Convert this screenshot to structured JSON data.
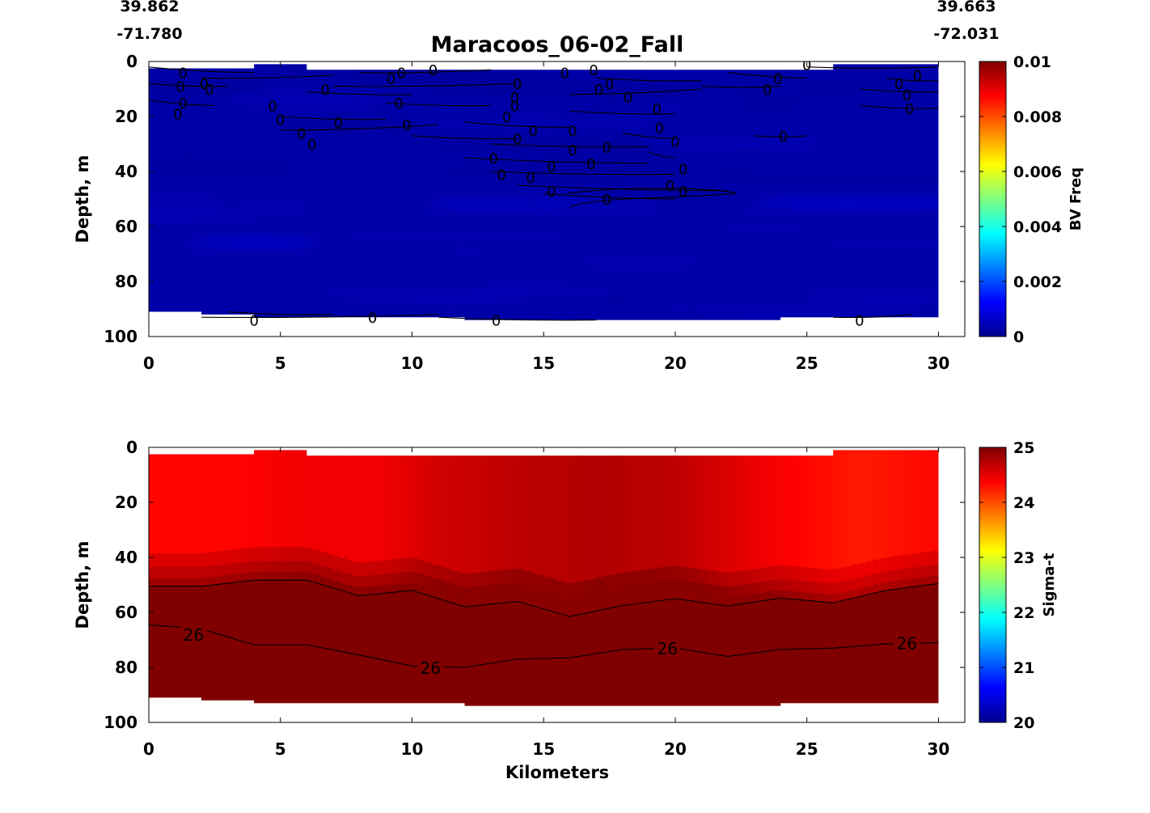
{
  "title": "Maracoos_06-02_Fall",
  "start": {
    "lat": "39.862",
    "lon": "-71.780"
  },
  "end": {
    "lat": "39.663",
    "lon": "-72.031"
  },
  "chart_data": [
    {
      "type": "heatmap",
      "name": "bv-freq-section",
      "xlabel": "",
      "ylabel": "Depth, m",
      "xlim": [
        0,
        31
      ],
      "ylim": [
        100,
        0
      ],
      "x_ticks": [
        0,
        5,
        10,
        15,
        20,
        25,
        30
      ],
      "y_ticks": [
        0,
        20,
        40,
        60,
        80,
        100
      ],
      "colorbar": {
        "label": "BV Freq",
        "range": [
          0,
          0.01
        ],
        "ticks": [
          0,
          0.002,
          0.004,
          0.006,
          0.008,
          0.01
        ],
        "tick_labels": [
          "0",
          "0.002",
          "0.004",
          "0.006",
          "0.008",
          "0.01"
        ],
        "colormap": "jet"
      },
      "field_value_range": [
        0,
        0.0012
      ],
      "data_extent_x": [
        0,
        30
      ],
      "depth_range_m": [
        2,
        93
      ],
      "contour_level": 0,
      "contour_labels": [
        {
          "x": 1.3,
          "y": 4,
          "t": "0"
        },
        {
          "x": 1.2,
          "y": 9,
          "t": "0"
        },
        {
          "x": 2.3,
          "y": 10,
          "t": "0"
        },
        {
          "x": 1.3,
          "y": 15,
          "t": "0"
        },
        {
          "x": 1.1,
          "y": 19,
          "t": "0"
        },
        {
          "x": 2.1,
          "y": 8,
          "t": "0"
        },
        {
          "x": 4.7,
          "y": 16,
          "t": "0"
        },
        {
          "x": 5.0,
          "y": 21,
          "t": "0"
        },
        {
          "x": 5.8,
          "y": 26,
          "t": "0"
        },
        {
          "x": 6.2,
          "y": 30,
          "t": "0"
        },
        {
          "x": 6.7,
          "y": 10,
          "t": "0"
        },
        {
          "x": 7.2,
          "y": 22,
          "t": "0"
        },
        {
          "x": 9.2,
          "y": 6,
          "t": "0"
        },
        {
          "x": 9.6,
          "y": 4,
          "t": "0"
        },
        {
          "x": 9.5,
          "y": 15,
          "t": "0"
        },
        {
          "x": 9.8,
          "y": 23,
          "t": "0"
        },
        {
          "x": 10.8,
          "y": 3,
          "t": "0"
        },
        {
          "x": 14.0,
          "y": 8,
          "t": "0"
        },
        {
          "x": 13.9,
          "y": 13,
          "t": "0"
        },
        {
          "x": 13.9,
          "y": 16,
          "t": "0"
        },
        {
          "x": 13.6,
          "y": 20,
          "t": "0"
        },
        {
          "x": 14.0,
          "y": 28,
          "t": "0"
        },
        {
          "x": 14.6,
          "y": 25,
          "t": "0"
        },
        {
          "x": 13.1,
          "y": 35,
          "t": "0"
        },
        {
          "x": 13.4,
          "y": 41,
          "t": "0"
        },
        {
          "x": 14.5,
          "y": 42,
          "t": "0"
        },
        {
          "x": 15.3,
          "y": 38,
          "t": "0"
        },
        {
          "x": 15.3,
          "y": 47,
          "t": "0"
        },
        {
          "x": 15.8,
          "y": 4,
          "t": "0"
        },
        {
          "x": 16.9,
          "y": 3,
          "t": "0"
        },
        {
          "x": 16.1,
          "y": 25,
          "t": "0"
        },
        {
          "x": 16.1,
          "y": 32,
          "t": "0"
        },
        {
          "x": 16.8,
          "y": 37,
          "t": "0"
        },
        {
          "x": 17.4,
          "y": 31,
          "t": "0"
        },
        {
          "x": 17.1,
          "y": 10,
          "t": "0"
        },
        {
          "x": 17.5,
          "y": 8,
          "t": "0"
        },
        {
          "x": 18.2,
          "y": 13,
          "t": "0"
        },
        {
          "x": 17.4,
          "y": 50,
          "t": "0"
        },
        {
          "x": 19.3,
          "y": 17,
          "t": "0"
        },
        {
          "x": 19.4,
          "y": 24,
          "t": "0"
        },
        {
          "x": 20.0,
          "y": 29,
          "t": "0"
        },
        {
          "x": 20.3,
          "y": 39,
          "t": "0"
        },
        {
          "x": 19.8,
          "y": 45,
          "t": "0"
        },
        {
          "x": 20.3,
          "y": 47,
          "t": "0"
        },
        {
          "x": 23.9,
          "y": 6,
          "t": "0"
        },
        {
          "x": 23.5,
          "y": 10,
          "t": "0"
        },
        {
          "x": 24.1,
          "y": 27,
          "t": "0"
        },
        {
          "x": 25.0,
          "y": 1,
          "t": "0"
        },
        {
          "x": 28.5,
          "y": 8,
          "t": "0"
        },
        {
          "x": 28.8,
          "y": 12,
          "t": "0"
        },
        {
          "x": 29.2,
          "y": 5,
          "t": "0"
        },
        {
          "x": 28.9,
          "y": 17,
          "t": "0"
        },
        {
          "x": 4.0,
          "y": 94,
          "t": "0"
        },
        {
          "x": 8.5,
          "y": 93,
          "t": "0"
        },
        {
          "x": 13.2,
          "y": 94,
          "t": "0"
        },
        {
          "x": 27.0,
          "y": 94,
          "t": "0"
        }
      ]
    },
    {
      "type": "heatmap",
      "name": "sigma-t-section",
      "xlabel": "Kilometers",
      "ylabel": "Depth, m",
      "xlim": [
        0,
        31
      ],
      "ylim": [
        100,
        0
      ],
      "x_ticks": [
        0,
        5,
        10,
        15,
        20,
        25,
        30
      ],
      "y_ticks": [
        0,
        20,
        40,
        60,
        80,
        100
      ],
      "colorbar": {
        "label": "Sigma-t",
        "range": [
          20,
          25
        ],
        "ticks": [
          20,
          21,
          22,
          23,
          24,
          25
        ],
        "tick_labels": [
          "20",
          "21",
          "22",
          "23",
          "24",
          "25"
        ],
        "colormap": "jet"
      },
      "data_extent_x": [
        0,
        30
      ],
      "surface_sigma_t": [
        {
          "x": 0,
          "v": 24.35
        },
        {
          "x": 3,
          "v": 24.35
        },
        {
          "x": 6,
          "v": 24.45
        },
        {
          "x": 9,
          "v": 24.45
        },
        {
          "x": 11,
          "v": 24.6
        },
        {
          "x": 14,
          "v": 24.7
        },
        {
          "x": 17,
          "v": 24.75
        },
        {
          "x": 20,
          "v": 24.7
        },
        {
          "x": 22,
          "v": 24.55
        },
        {
          "x": 24,
          "v": 24.4
        },
        {
          "x": 27,
          "v": 24.25
        },
        {
          "x": 30,
          "v": 24.35
        }
      ],
      "pycnocline_depth_m": [
        {
          "x": 0,
          "d": 50.5
        },
        {
          "x": 2,
          "d": 50.5
        },
        {
          "x": 4,
          "d": 48.3
        },
        {
          "x": 6,
          "d": 48.3
        },
        {
          "x": 8,
          "d": 54
        },
        {
          "x": 10,
          "d": 52
        },
        {
          "x": 12,
          "d": 58
        },
        {
          "x": 14,
          "d": 56
        },
        {
          "x": 16,
          "d": 61.5
        },
        {
          "x": 18,
          "d": 57.5
        },
        {
          "x": 20,
          "d": 55
        },
        {
          "x": 22,
          "d": 57.7
        },
        {
          "x": 24,
          "d": 54.8
        },
        {
          "x": 26,
          "d": 56.5
        },
        {
          "x": 28,
          "d": 52
        },
        {
          "x": 30,
          "d": 49.5
        }
      ],
      "contour_26_depth_m": [
        {
          "x": 0,
          "d": 64.5
        },
        {
          "x": 2,
          "d": 66
        },
        {
          "x": 4,
          "d": 71.8
        },
        {
          "x": 6,
          "d": 71.8
        },
        {
          "x": 8,
          "d": 75.5
        },
        {
          "x": 10,
          "d": 79.5
        },
        {
          "x": 12,
          "d": 80
        },
        {
          "x": 14,
          "d": 77
        },
        {
          "x": 16,
          "d": 76.5
        },
        {
          "x": 18,
          "d": 73.5
        },
        {
          "x": 20,
          "d": 73
        },
        {
          "x": 22,
          "d": 76
        },
        {
          "x": 24,
          "d": 73.5
        },
        {
          "x": 26,
          "d": 73
        },
        {
          "x": 28,
          "d": 71.5
        },
        {
          "x": 30,
          "d": 71
        }
      ],
      "contour_labels": [
        {
          "x": 1.7,
          "y": 68,
          "t": "26"
        },
        {
          "x": 10.7,
          "y": 80,
          "t": "26"
        },
        {
          "x": 19.7,
          "y": 73,
          "t": "26"
        },
        {
          "x": 28.8,
          "y": 71,
          "t": "26"
        }
      ]
    }
  ],
  "bottom_profile_m": [
    {
      "x0": 0,
      "x1": 2,
      "d": 91
    },
    {
      "x0": 2,
      "x1": 4,
      "d": 92
    },
    {
      "x0": 4,
      "x1": 12,
      "d": 93
    },
    {
      "x0": 12,
      "x1": 24,
      "d": 94
    },
    {
      "x0": 24,
      "x1": 30,
      "d": 93
    }
  ],
  "top_profile_m": [
    {
      "x0": 0,
      "x1": 4,
      "d": 2.5
    },
    {
      "x0": 4,
      "x1": 6,
      "d": 1
    },
    {
      "x0": 6,
      "x1": 26,
      "d": 3
    },
    {
      "x0": 26,
      "x1": 30,
      "d": 1
    }
  ]
}
